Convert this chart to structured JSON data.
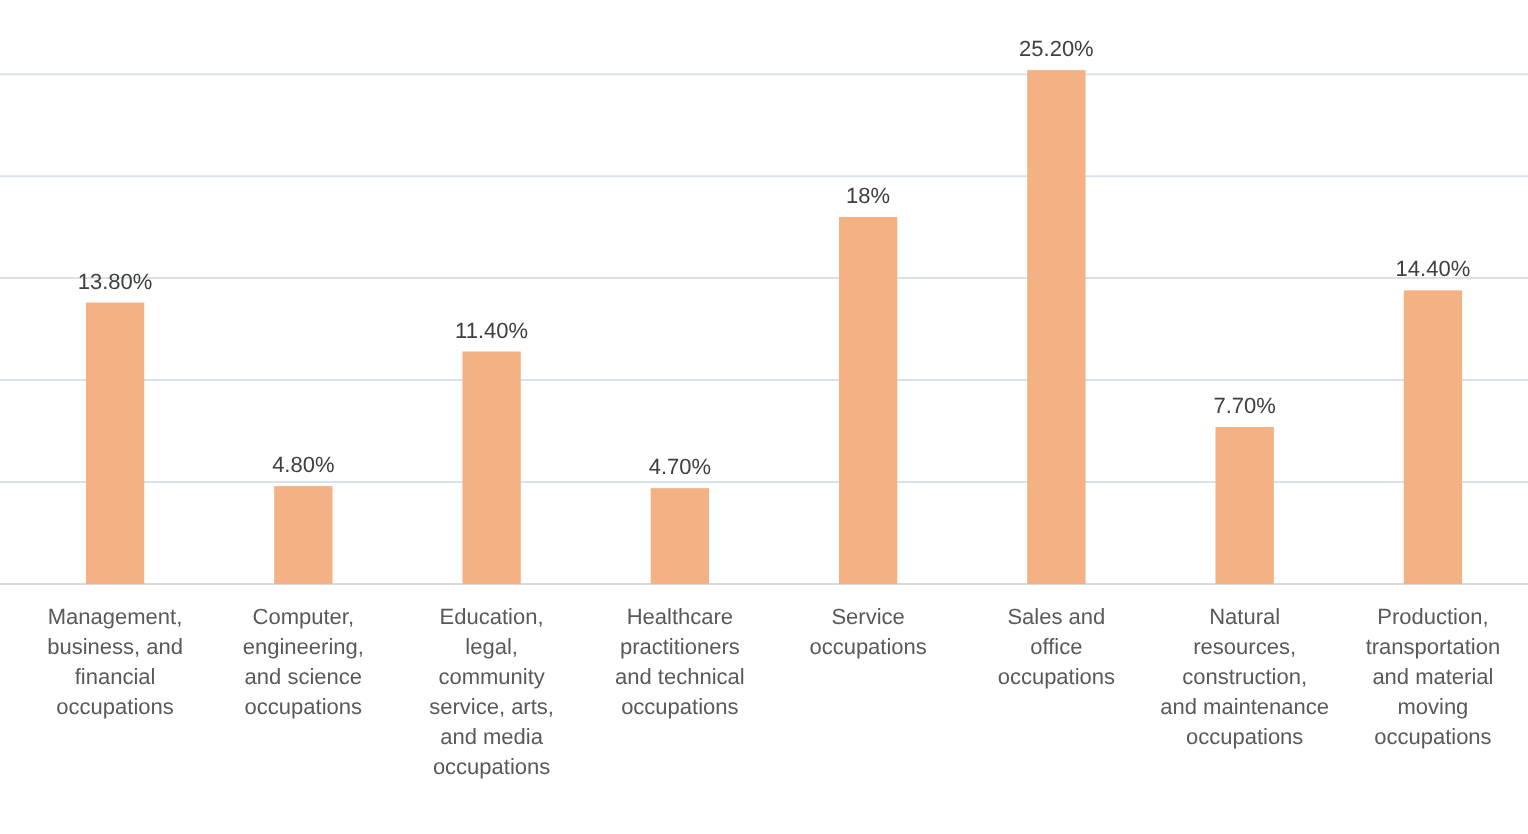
{
  "chart_data": {
    "type": "bar",
    "categories": [
      "Management, business, and financial occupations",
      "Computer, engineering, and science occupations",
      "Education, legal, community service, arts, and media occupations",
      "Healthcare practitioners and technical occupations",
      "Service occupations",
      "Sales and office occupations",
      "Natural resources, construction, and maintenance occupations",
      "Production, transportation and material moving occupations"
    ],
    "values": [
      13.8,
      4.8,
      11.4,
      4.7,
      18,
      25.2,
      7.7,
      14.4
    ],
    "value_labels": [
      "13.80%",
      "4.80%",
      "11.40%",
      "4.70%",
      "18%",
      "25.20%",
      "7.70%",
      "14.40%"
    ],
    "color": "#f4b183",
    "ylim": [
      0,
      25.5
    ],
    "yticks": [
      {
        "value": 0,
        "label": null
      },
      {
        "value": 5,
        "label": null
      },
      {
        "value": 10,
        "label": null
      },
      {
        "value": 15,
        "label": null
      },
      {
        "value": 20,
        "label": null
      },
      {
        "value": 25,
        "label": null
      }
    ],
    "grid": "y",
    "tick_labels": "x"
  }
}
